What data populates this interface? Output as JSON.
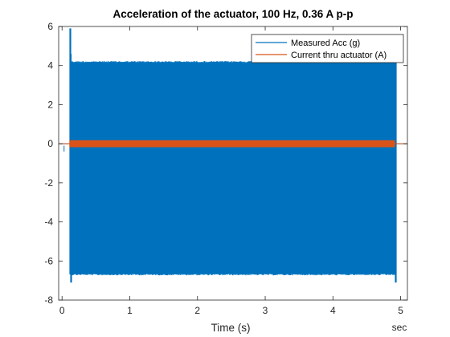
{
  "chart_data": {
    "type": "line",
    "title": "Acceleration of the actuator, 100 Hz, 0.36 A p-p",
    "xlabel": "Time (s)",
    "x_unit_label": "sec",
    "ylabel": "",
    "xlim": [
      -0.05,
      5.1
    ],
    "ylim": [
      -8,
      6
    ],
    "xticks": [
      0,
      1,
      2,
      3,
      4,
      5
    ],
    "yticks": [
      -8,
      -6,
      -4,
      -2,
      0,
      2,
      4,
      6
    ],
    "grid": false,
    "legend_position": "top-right",
    "series": [
      {
        "name": "Measured Acc (g)",
        "color": "#0072BD",
        "style": "dense-oscillation",
        "frequency_hz": 100,
        "active_start": 0.12,
        "active_end": 4.93,
        "envelope_upper": 4.2,
        "envelope_lower": -6.7,
        "peak_max": 5.9,
        "peak_min": -7.1,
        "idle_value": 0.0
      },
      {
        "name": "Current thru actuator (A)",
        "color": "#D95319",
        "style": "dense-oscillation",
        "frequency_hz": 100,
        "active_start": 0.12,
        "active_end": 4.9,
        "envelope_upper": 0.18,
        "envelope_lower": -0.18,
        "idle_value": 0.0
      }
    ]
  }
}
